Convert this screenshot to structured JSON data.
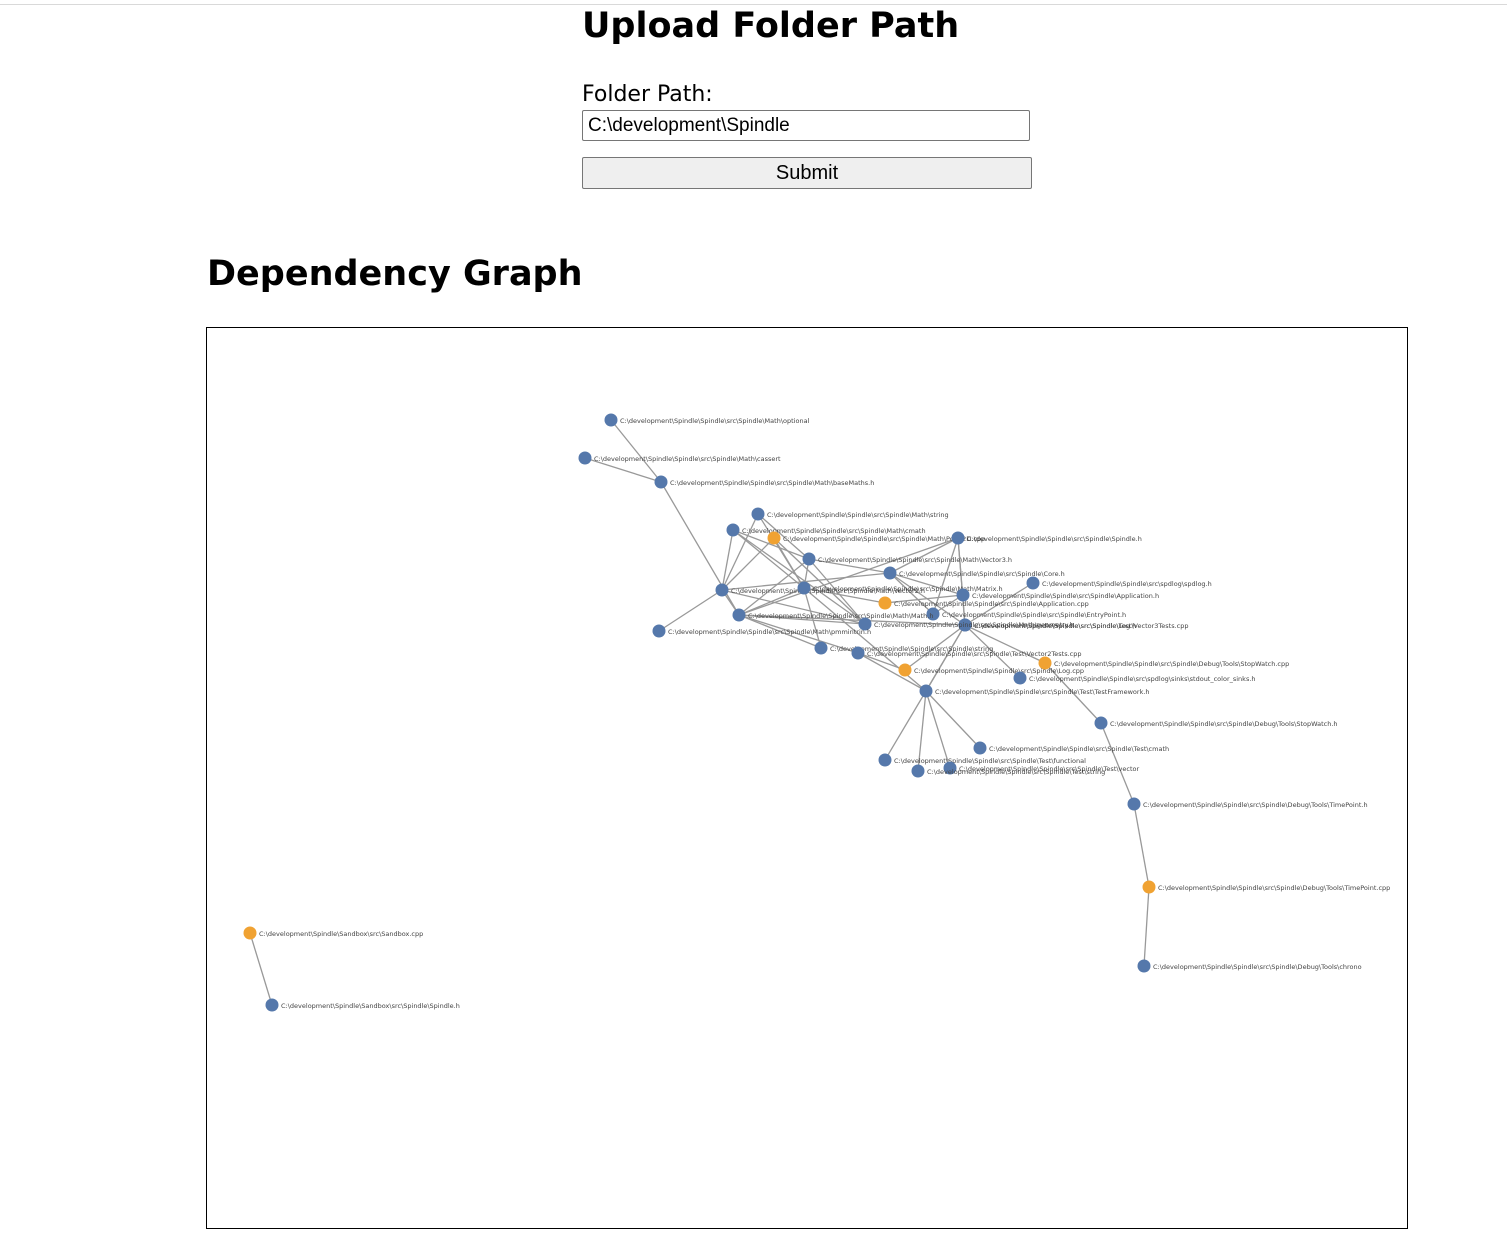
{
  "upload": {
    "title": "Upload Folder Path",
    "label": "Folder Path:",
    "input_value": "C:\\development\\Spindle",
    "submit_label": "Submit"
  },
  "graph": {
    "title": "Dependency Graph",
    "colors": {
      "header": "#5578ab",
      "source": "#f0a232",
      "link": "#999999",
      "label": "#444444"
    },
    "nodes": [
      {
        "id": "optional",
        "label": "C:\\development\\Spindle\\Spindle\\src\\Spindle\\Math\\optional",
        "kind": "header"
      },
      {
        "id": "cassert",
        "label": "C:\\development\\Spindle\\Spindle\\src\\Spindle\\Math\\cassert",
        "kind": "header"
      },
      {
        "id": "baseMaths",
        "label": "C:\\development\\Spindle\\Spindle\\src\\Spindle\\Math\\baseMaths.h",
        "kind": "header"
      },
      {
        "id": "mstring",
        "label": "C:\\development\\Spindle\\Spindle\\src\\Spindle\\Math\\string",
        "kind": "header"
      },
      {
        "id": "mcmath",
        "label": "C:\\development\\Spindle\\Spindle\\src\\Spindle\\Math\\cmath",
        "kind": "header"
      },
      {
        "id": "pointcpp",
        "label": "C:\\development\\Spindle\\Spindle\\src\\Spindle\\Math\\Point2D.cpp",
        "kind": "source"
      },
      {
        "id": "spindleh",
        "label": "C:\\development\\Spindle\\Spindle\\src\\Spindle\\Spindle.h",
        "kind": "header"
      },
      {
        "id": "vector3",
        "label": "C:\\development\\Spindle\\Spindle\\src\\Spindle\\Math\\Vector3.h",
        "kind": "header"
      },
      {
        "id": "core",
        "label": "C:\\development\\Spindle\\Spindle\\src\\Spindle\\Core.h",
        "kind": "header"
      },
      {
        "id": "spdlog",
        "label": "C:\\development\\Spindle\\Spindle\\src\\spdlog\\spdlog.h",
        "kind": "header"
      },
      {
        "id": "vector2",
        "label": "C:\\development\\Spindle\\Spindle\\src\\Spindle\\Math\\Vector2.h",
        "kind": "header"
      },
      {
        "id": "matrix",
        "label": "C:\\development\\Spindle\\Spindle\\src\\Spindle\\Math\\Matrix.h",
        "kind": "header"
      },
      {
        "id": "apph",
        "label": "C:\\development\\Spindle\\Spindle\\src\\Spindle\\Application.h",
        "kind": "header"
      },
      {
        "id": "appcpp",
        "label": "C:\\development\\Spindle\\Spindle\\src\\Spindle\\Application.cpp",
        "kind": "source"
      },
      {
        "id": "entry",
        "label": "C:\\development\\Spindle\\Spindle\\src\\Spindle\\EntryPoint.h",
        "kind": "header"
      },
      {
        "id": "mathh",
        "label": "C:\\development\\Spindle\\Spindle\\src\\Spindle\\Math\\Math.h",
        "kind": "header"
      },
      {
        "id": "vec3tests",
        "label": "C:\\development\\Spindle\\Spindle\\src\\Spindle\\Test\\Vector3Tests.cpp",
        "kind": "header"
      },
      {
        "id": "logh",
        "label": "C:\\development\\Spindle\\Spindle\\src\\Spindle\\Log.h",
        "kind": "header"
      },
      {
        "id": "geometry",
        "label": "C:\\development\\Spindle\\Spindle\\src\\Spindle\\Math\\geometry.h",
        "kind": "header"
      },
      {
        "id": "sstring",
        "label": "C:\\development\\Spindle\\Spindle\\src\\Spindle\\string",
        "kind": "header"
      },
      {
        "id": "vec2tests",
        "label": "C:\\development\\Spindle\\Spindle\\src\\Spindle\\Test\\Vector2Tests.cpp",
        "kind": "header"
      },
      {
        "id": "pmmintrin",
        "label": "C:\\development\\Spindle\\Spindle\\src\\Spindle\\Math\\pmmintrin.h",
        "kind": "header"
      },
      {
        "id": "stopwatchcpp",
        "label": "C:\\development\\Spindle\\Spindle\\src\\Spindle\\Debug\\Tools\\StopWatch.cpp",
        "kind": "source"
      },
      {
        "id": "logcpp",
        "label": "C:\\development\\Spindle\\Spindle\\src\\Spindle\\Log.cpp",
        "kind": "source"
      },
      {
        "id": "sinks",
        "label": "C:\\development\\Spindle\\Spindle\\src\\spdlog\\sinks\\stdout_color_sinks.h",
        "kind": "header"
      },
      {
        "id": "testfw",
        "label": "C:\\development\\Spindle\\Spindle\\src\\Spindle\\Test\\TestFramework.h",
        "kind": "header"
      },
      {
        "id": "stopwatchh",
        "label": "C:\\development\\Spindle\\Spindle\\src\\Spindle\\Debug\\Tools\\StopWatch.h",
        "kind": "header"
      },
      {
        "id": "tcmath",
        "label": "C:\\development\\Spindle\\Spindle\\src\\Spindle\\Test\\cmath",
        "kind": "header"
      },
      {
        "id": "tfunctional",
        "label": "C:\\development\\Spindle\\Spindle\\src\\Spindle\\Test\\functional",
        "kind": "header"
      },
      {
        "id": "tvector",
        "label": "C:\\development\\Spindle\\Spindle\\src\\Spindle\\Test\\vector",
        "kind": "header"
      },
      {
        "id": "tstring",
        "label": "C:\\development\\Spindle\\Spindle\\src\\Spindle\\Test\\string",
        "kind": "header"
      },
      {
        "id": "timepointh",
        "label": "C:\\development\\Spindle\\Spindle\\src\\Spindle\\Debug\\Tools\\TimePoint.h",
        "kind": "header"
      },
      {
        "id": "timepointcpp",
        "label": "C:\\development\\Spindle\\Spindle\\src\\Spindle\\Debug\\Tools\\TimePoint.cpp",
        "kind": "source"
      },
      {
        "id": "chrono",
        "label": "C:\\development\\Spindle\\Spindle\\src\\Spindle\\Debug\\Tools\\chrono",
        "kind": "header"
      },
      {
        "id": "sandboxcpp",
        "label": "C:\\development\\Spindle\\Sandbox\\src\\Sandbox.cpp",
        "kind": "source"
      },
      {
        "id": "sandboxspindle",
        "label": "C:\\development\\Spindle\\Sandbox\\src\\Spindle\\Spindle.h",
        "kind": "header"
      }
    ],
    "links": [
      [
        "optional",
        "baseMaths"
      ],
      [
        "cassert",
        "baseMaths"
      ],
      [
        "baseMaths",
        "mathh"
      ],
      [
        "mcmath",
        "vector3"
      ],
      [
        "mcmath",
        "vector2"
      ],
      [
        "mcmath",
        "matrix"
      ],
      [
        "mcmath",
        "geometry"
      ],
      [
        "mstring",
        "vector3"
      ],
      [
        "mstring",
        "vector2"
      ],
      [
        "mstring",
        "matrix"
      ],
      [
        "pointcpp",
        "vector2"
      ],
      [
        "pointcpp",
        "matrix"
      ],
      [
        "pointcpp",
        "geometry"
      ],
      [
        "vector3",
        "matrix"
      ],
      [
        "vector3",
        "core"
      ],
      [
        "vector3",
        "mathh"
      ],
      [
        "vector3",
        "geometry"
      ],
      [
        "vector2",
        "core"
      ],
      [
        "vector2",
        "mathh"
      ],
      [
        "vector2",
        "geometry"
      ],
      [
        "vector2",
        "pmmintrin"
      ],
      [
        "matrix",
        "mathh"
      ],
      [
        "matrix",
        "appcpp"
      ],
      [
        "matrix",
        "testfw"
      ],
      [
        "matrix",
        "sstring"
      ],
      [
        "geometry",
        "mathh"
      ],
      [
        "core",
        "spindleh"
      ],
      [
        "core",
        "apph"
      ],
      [
        "core",
        "logh"
      ],
      [
        "core",
        "entry"
      ],
      [
        "spindleh",
        "mathh"
      ],
      [
        "spindleh",
        "entry"
      ],
      [
        "spindleh",
        "vec3tests"
      ],
      [
        "spindleh",
        "logh"
      ],
      [
        "apph",
        "appcpp"
      ],
      [
        "apph",
        "entry"
      ],
      [
        "spdlog",
        "logh"
      ],
      [
        "logh",
        "logcpp"
      ],
      [
        "sinks",
        "logh"
      ],
      [
        "logcpp",
        "vec2tests"
      ],
      [
        "mathh",
        "vec3tests"
      ],
      [
        "mathh",
        "vec2tests"
      ],
      [
        "mathh",
        "sstring"
      ],
      [
        "vec3tests",
        "testfw"
      ],
      [
        "vec2tests",
        "testfw"
      ],
      [
        "logh",
        "testfw"
      ],
      [
        "vec3tests",
        "stopwatchcpp"
      ],
      [
        "testfw",
        "tcmath"
      ],
      [
        "testfw",
        "tfunctional"
      ],
      [
        "testfw",
        "tvector"
      ],
      [
        "testfw",
        "tstring"
      ],
      [
        "stopwatchcpp",
        "stopwatchh"
      ],
      [
        "stopwatchh",
        "timepointh"
      ],
      [
        "timepointh",
        "timepointcpp"
      ],
      [
        "timepointcpp",
        "chrono"
      ],
      [
        "sandboxcpp",
        "sandboxspindle"
      ]
    ]
  }
}
